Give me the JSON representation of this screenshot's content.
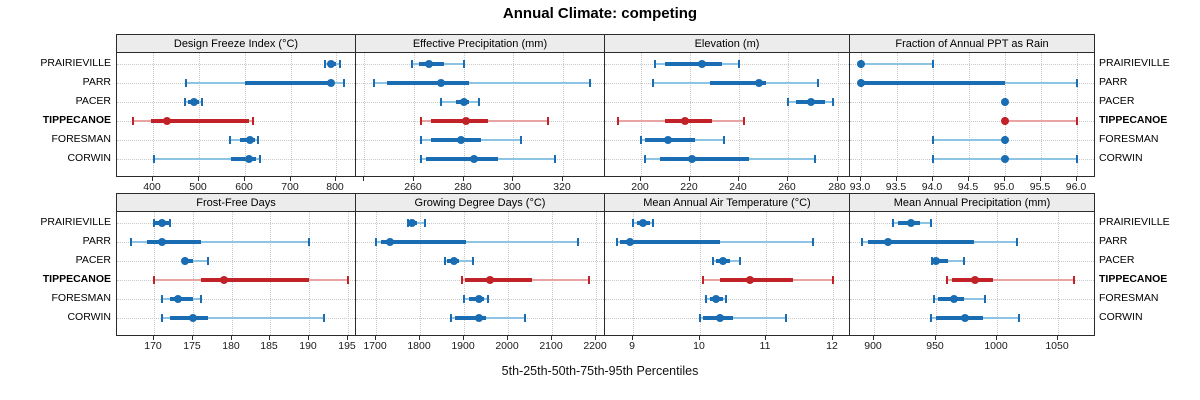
{
  "title": "Annual Climate: competing",
  "xlabel": "5th-25th-50th-75th-95th Percentiles",
  "colors": {
    "blue": "#1a6db3",
    "blue_light": "#8ec4e3",
    "red": "#c12227",
    "red_light": "#e9a5a3",
    "grid": "#c9c9c9",
    "panel_border": "#2b2b2b",
    "header_bg": "#ececec"
  },
  "chart_data": {
    "type": "dot-whisker trellis (5th-25th-50th-75th-95th percentiles)",
    "sites": [
      "PRAIRIEVILLE",
      "PARR",
      "PACER",
      "TIPPECANOE",
      "FORESMAN",
      "CORWIN"
    ],
    "highlight_site": "TIPPECANOE",
    "legend_note": "whisker = 5th to 95th percentile, thick bar = 25th to 75th, dot = median",
    "panels": [
      {
        "title": "Design Freeze Index (°C)",
        "xlim": [
          323,
          843
        ],
        "ticks": [
          400,
          500,
          600,
          700,
          800
        ],
        "tick_labels": [
          "400",
          "500",
          "600",
          "700",
          "800"
        ],
        "values": {
          "PRAIRIEVILLE": [
            775,
            781,
            789,
            799,
            808
          ],
          "PARR": [
            472,
            600,
            788,
            793,
            816
          ],
          "PACER": [
            470,
            476,
            490,
            499,
            506
          ],
          "TIPPECANOE": [
            355,
            396,
            430,
            610,
            617
          ],
          "FORESMAN": [
            568,
            590,
            611,
            622,
            628
          ],
          "CORWIN": [
            402,
            570,
            610,
            625,
            633
          ]
        }
      },
      {
        "title": "Effective Precipitation (mm)",
        "xlim": [
          237,
          337
        ],
        "ticks": [
          240,
          260,
          280,
          300,
          320
        ],
        "tick_labels": [
          "",
          "260",
          "280",
          "300",
          "320"
        ],
        "values": {
          "PRAIRIEVILLE": [
            259,
            262,
            266,
            272,
            280
          ],
          "PARR": [
            244,
            249,
            271,
            282,
            331
          ],
          "PACER": [
            271,
            277,
            280,
            282,
            286
          ],
          "TIPPECANOE": [
            263,
            267,
            281,
            290,
            314
          ],
          "FORESMAN": [
            263,
            267,
            279,
            287,
            303
          ],
          "CORWIN": [
            263,
            265,
            284,
            294,
            317
          ]
        }
      },
      {
        "title": "Elevation (m)",
        "xlim": [
          186,
          285
        ],
        "ticks": [
          200,
          220,
          240,
          260,
          280
        ],
        "tick_labels": [
          "200",
          "220",
          "240",
          "260",
          "280"
        ],
        "values": {
          "PRAIRIEVILLE": [
            206,
            210,
            225,
            233,
            240
          ],
          "PARR": [
            205,
            228,
            248,
            251,
            272
          ],
          "PACER": [
            260,
            263,
            269,
            275,
            278
          ],
          "TIPPECANOE": [
            191,
            210,
            218,
            229,
            242
          ],
          "FORESMAN": [
            200,
            202,
            211,
            222,
            234
          ],
          "CORWIN": [
            202,
            208,
            221,
            244,
            271
          ]
        }
      },
      {
        "title": "Fraction of Annual PPT as Rain",
        "xlim": [
          92.86,
          96.25
        ],
        "ticks": [
          93,
          93.5,
          94,
          94.5,
          95,
          95.5,
          96
        ],
        "tick_labels": [
          "93.0",
          "93.5",
          "94.0",
          "94.5",
          "95.0",
          "95.5",
          "96.0"
        ],
        "values": {
          "PRAIRIEVILLE": [
            93,
            93,
            93,
            93,
            94
          ],
          "PARR": [
            93,
            93,
            93,
            95,
            96
          ],
          "PACER": [
            95,
            95,
            95,
            95,
            95
          ],
          "TIPPECANOE": [
            95,
            95,
            95,
            95,
            96
          ],
          "FORESMAN": [
            94,
            95,
            95,
            95,
            95
          ],
          "CORWIN": [
            94,
            95,
            95,
            95,
            96
          ]
        }
      },
      {
        "title": "Frost-Free Days",
        "xlim": [
          165.3,
          196.1
        ],
        "ticks": [
          170,
          175,
          180,
          185,
          190,
          195
        ],
        "tick_labels": [
          "170",
          "175",
          "180",
          "185",
          "190",
          "195"
        ],
        "values": {
          "PRAIRIEVILLE": [
            170,
            170,
            171,
            172,
            172
          ],
          "PARR": [
            167,
            169,
            171,
            176,
            190
          ],
          "PACER": [
            174,
            174,
            174,
            175,
            177
          ],
          "TIPPECANOE": [
            170,
            176,
            179,
            190,
            195
          ],
          "FORESMAN": [
            171,
            172,
            173,
            175,
            176
          ],
          "CORWIN": [
            171,
            172,
            175,
            177,
            192
          ]
        }
      },
      {
        "title": "Growing Degree Days (°C)",
        "xlim": [
          1657,
          2221
        ],
        "ticks": [
          1700,
          1800,
          1900,
          2000,
          2100,
          2200
        ],
        "tick_labels": [
          "1700",
          "1800",
          "1900",
          "2000",
          "2100",
          "2200"
        ],
        "values": {
          "PRAIRIEVILLE": [
            1773,
            1776,
            1783,
            1794,
            1812
          ],
          "PARR": [
            1700,
            1711,
            1731,
            1906,
            2160
          ],
          "PACER": [
            1856,
            1862,
            1877,
            1890,
            1920
          ],
          "TIPPECANOE": [
            1895,
            1903,
            1960,
            2055,
            2185
          ],
          "FORESMAN": [
            1901,
            1911,
            1934,
            1945,
            1955
          ],
          "CORWIN": [
            1871,
            1881,
            1934,
            1950,
            2039
          ]
        }
      },
      {
        "title": "Mean Annual Air Temperature (°C)",
        "xlim": [
          8.59,
          12.26
        ],
        "ticks": [
          9,
          10,
          11,
          12
        ],
        "tick_labels": [
          "9",
          "10",
          "11",
          "12"
        ],
        "values": {
          "PRAIRIEVILLE": [
            9.0,
            9.05,
            9.15,
            9.25,
            9.3
          ],
          "PARR": [
            8.75,
            8.8,
            8.95,
            10.3,
            11.7
          ],
          "PACER": [
            10.2,
            10.25,
            10.35,
            10.45,
            10.6
          ],
          "TIPPECANOE": [
            10.05,
            10.3,
            10.75,
            11.4,
            12.0
          ],
          "FORESMAN": [
            10.1,
            10.15,
            10.25,
            10.35,
            10.4
          ],
          "CORWIN": [
            10.0,
            10.05,
            10.3,
            10.5,
            11.3
          ]
        }
      },
      {
        "title": "Mean Annual Precipitation (mm)",
        "xlim": [
          881,
          1080
        ],
        "ticks": [
          900,
          950,
          1000,
          1050
        ],
        "tick_labels": [
          "900",
          "950",
          "1000",
          "1050"
        ],
        "values": {
          "PRAIRIEVILLE": [
            915,
            919,
            930,
            937,
            946
          ],
          "PARR": [
            890,
            895,
            911,
            981,
            1016
          ],
          "PACER": [
            947,
            948,
            950,
            960,
            973
          ],
          "TIPPECANOE": [
            959,
            963,
            982,
            997,
            1063
          ],
          "FORESMAN": [
            949,
            952,
            965,
            973,
            990
          ],
          "CORWIN": [
            946,
            950,
            974,
            989,
            1018
          ]
        }
      }
    ]
  }
}
